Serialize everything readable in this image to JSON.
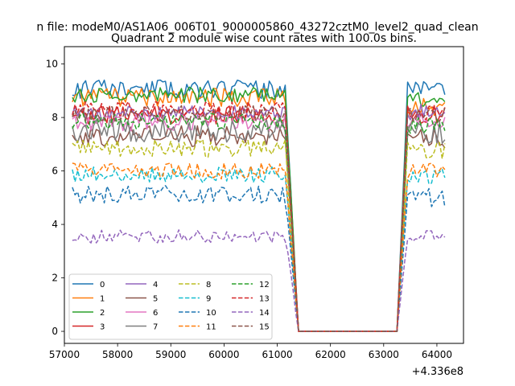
{
  "chart_data": {
    "type": "line",
    "suptitle": "n file: modeM0/AS1A06_006T01_9000005860_43272cztM0_level2_quad_clean",
    "title": "Quadrant 2 module wise count rates with 100.0s bins.",
    "xlabel": "",
    "ylabel": "",
    "x_offset_label": "+4.336e8",
    "xlim": [
      57000,
      64500
    ],
    "ylim": [
      -0.45,
      10.65
    ],
    "x_ticks": [
      57000,
      58000,
      59000,
      60000,
      61000,
      62000,
      63000,
      64000
    ],
    "x_tick_labels": [
      "57000",
      "58000",
      "59000",
      "60000",
      "61000",
      "62000",
      "63000",
      "64000"
    ],
    "y_ticks": [
      0,
      2,
      4,
      6,
      8,
      10
    ],
    "y_tick_labels": [
      "0",
      "2",
      "4",
      "6",
      "8",
      "10"
    ],
    "grid": false,
    "legend": {
      "placement": "lower-left",
      "columns": 4
    },
    "x": {
      "segments": [
        {
          "start": 57150,
          "end": 61150,
          "step": 50
        },
        {
          "start": 61200,
          "end": 63300,
          "step": 50
        },
        {
          "start": 63350,
          "end": 64150,
          "step": 50
        }
      ]
    },
    "series": [
      {
        "name": "0",
        "color": "#1f77b4",
        "dash": false,
        "base1": 9.05,
        "base2": 9.1,
        "noise": 0.35,
        "seed": 11
      },
      {
        "name": "1",
        "color": "#ff7f0e",
        "dash": false,
        "base1": 8.75,
        "base2": 8.4,
        "noise": 0.35,
        "seed": 12
      },
      {
        "name": "2",
        "color": "#2ca02c",
        "dash": false,
        "base1": 8.85,
        "base2": 8.7,
        "noise": 0.3,
        "seed": 13
      },
      {
        "name": "3",
        "color": "#d62728",
        "dash": false,
        "base1": 8.1,
        "base2": 8.1,
        "noise": 0.35,
        "seed": 14
      },
      {
        "name": "4",
        "color": "#9467bd",
        "dash": false,
        "base1": 8.15,
        "base2": 8.2,
        "noise": 0.3,
        "seed": 15
      },
      {
        "name": "5",
        "color": "#8c564b",
        "dash": false,
        "base1": 7.3,
        "base2": 7.2,
        "noise": 0.4,
        "seed": 16
      },
      {
        "name": "6",
        "color": "#e377c2",
        "dash": false,
        "base1": 7.85,
        "base2": 7.9,
        "noise": 0.35,
        "seed": 17
      },
      {
        "name": "7",
        "color": "#7f7f7f",
        "dash": false,
        "base1": 7.5,
        "base2": 7.4,
        "noise": 0.45,
        "seed": 18
      },
      {
        "name": "8",
        "color": "#bcbd22",
        "dash": true,
        "base1": 6.85,
        "base2": 6.8,
        "noise": 0.35,
        "seed": 19
      },
      {
        "name": "9",
        "color": "#17becf",
        "dash": true,
        "base1": 5.85,
        "base2": 5.8,
        "noise": 0.3,
        "seed": 20
      },
      {
        "name": "10",
        "color": "#1f77b4",
        "dash": true,
        "base1": 5.1,
        "base2": 5.0,
        "noise": 0.35,
        "seed": 21
      },
      {
        "name": "11",
        "color": "#ff7f0e",
        "dash": true,
        "base1": 6.0,
        "base2": 6.0,
        "noise": 0.3,
        "seed": 22
      },
      {
        "name": "12",
        "color": "#2ca02c",
        "dash": true,
        "base1": 7.85,
        "base2": 7.7,
        "noise": 0.3,
        "seed": 23
      },
      {
        "name": "13",
        "color": "#d62728",
        "dash": true,
        "base1": 8.3,
        "base2": 8.2,
        "noise": 0.3,
        "seed": 24
      },
      {
        "name": "14",
        "color": "#9467bd",
        "dash": true,
        "base1": 3.55,
        "base2": 3.6,
        "noise": 0.25,
        "seed": 25
      },
      {
        "name": "15",
        "color": "#8c564b",
        "dash": true,
        "base1": 8.15,
        "base2": 8.1,
        "noise": 0.3,
        "seed": 26
      }
    ]
  }
}
